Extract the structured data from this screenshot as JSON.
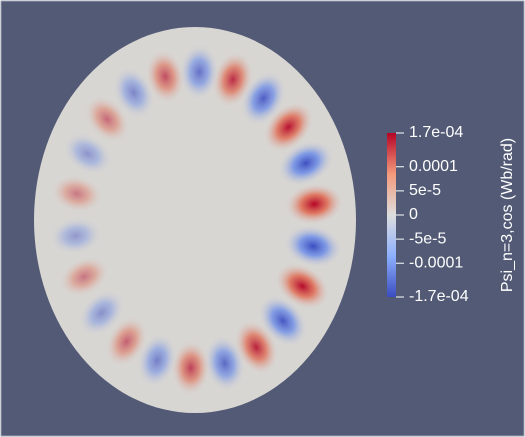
{
  "colorbar": {
    "title": "Psi_n=3,cos (Wb/rad)",
    "range": [
      -0.00017,
      0.00017
    ],
    "ticks": [
      {
        "value": 0.00017,
        "label": "1.7e-04"
      },
      0.0001,
      {
        "value": 5e-05,
        "label": "5e-5"
      },
      0,
      {
        "value": -5e-05,
        "label": "-5e-5"
      },
      -0.0001,
      {
        "value": -0.00017,
        "label": "-1.7e-04"
      }
    ]
  }
}
